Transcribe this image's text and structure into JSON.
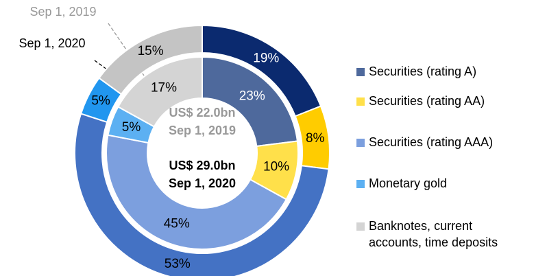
{
  "chart_data": {
    "type": "donut",
    "categories": [
      "Securities (rating A)",
      "Securities (rating AA)",
      "Securities (rating AAA)",
      "Monetary gold",
      "Banknotes, current accounts, time deposits"
    ],
    "series": [
      {
        "name": "Sep 1, 2020",
        "total_label": "US$ 29.0bn",
        "values": [
          19,
          8,
          53,
          5,
          15
        ],
        "value_labels": [
          "19%",
          "8%",
          "53%",
          "5%",
          "15%"
        ],
        "colors": [
          "#0b2a6f",
          "#ffcc00",
          "#4472c4",
          "#2196ef",
          "#c4c4c4"
        ]
      },
      {
        "name": "Sep 1, 2019",
        "total_label": "US$ 22.0bn",
        "values": [
          23,
          10,
          45,
          5,
          17
        ],
        "value_labels": [
          "23%",
          "10%",
          "45%",
          "5%",
          "17%"
        ],
        "colors": [
          "#4e699c",
          "#ffe04a",
          "#7c9fde",
          "#5cb0f2",
          "#d4d4d4"
        ]
      }
    ]
  }
}
